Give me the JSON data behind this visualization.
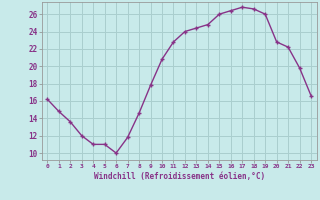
{
  "x": [
    0,
    1,
    2,
    3,
    4,
    5,
    6,
    7,
    8,
    9,
    10,
    11,
    12,
    13,
    14,
    15,
    16,
    17,
    18,
    19,
    20,
    21,
    22,
    23
  ],
  "y": [
    16.2,
    14.8,
    13.6,
    12.0,
    11.0,
    11.0,
    10.0,
    11.8,
    14.6,
    17.8,
    20.8,
    22.8,
    24.0,
    24.4,
    24.8,
    26.0,
    26.4,
    26.8,
    26.6,
    26.0,
    22.8,
    22.2,
    19.8,
    16.6
  ],
  "line_color": "#883388",
  "marker": "+",
  "bg_color": "#c8eaea",
  "grid_color": "#aacece",
  "xlabel": "Windchill (Refroidissement éolien,°C)",
  "ylabel_ticks": [
    10,
    12,
    14,
    16,
    18,
    20,
    22,
    24,
    26
  ],
  "xlim": [
    -0.5,
    23.5
  ],
  "ylim": [
    9.2,
    27.4
  ],
  "tick_color": "#883388",
  "label_color": "#883388",
  "font_name": "monospace"
}
